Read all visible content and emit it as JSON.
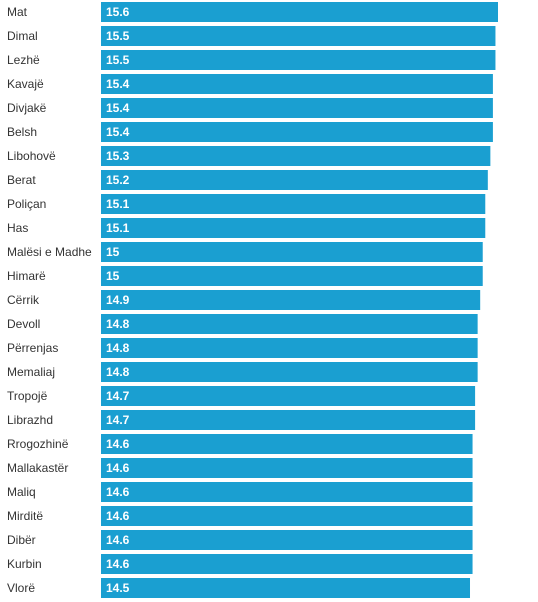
{
  "chart_data": {
    "type": "bar",
    "orientation": "horizontal",
    "color": "#1a9fd1",
    "categories": [
      "Mat",
      "Dimal",
      "Lezhë",
      "Kavajë",
      "Divjakë",
      "Belsh",
      "Libohovë",
      "Berat",
      "Poliçan",
      "Has",
      "Malësi e Madhe",
      "Himarë",
      "Cërrik",
      "Devoll",
      "Përrenjas",
      "Memaliaj",
      "Tropojë",
      "Librazhd",
      "Rrogozhinë",
      "Mallakastër",
      "Maliq",
      "Mirditë",
      "Dibër",
      "Kurbin",
      "Vlorë"
    ],
    "values": [
      15.6,
      15.5,
      15.5,
      15.4,
      15.4,
      15.4,
      15.3,
      15.2,
      15.1,
      15.1,
      15,
      15,
      14.9,
      14.8,
      14.8,
      14.8,
      14.7,
      14.7,
      14.6,
      14.6,
      14.6,
      14.6,
      14.6,
      14.6,
      14.5
    ],
    "title": "",
    "xlabel": "",
    "ylabel": "",
    "grid": false,
    "legend": "none"
  }
}
